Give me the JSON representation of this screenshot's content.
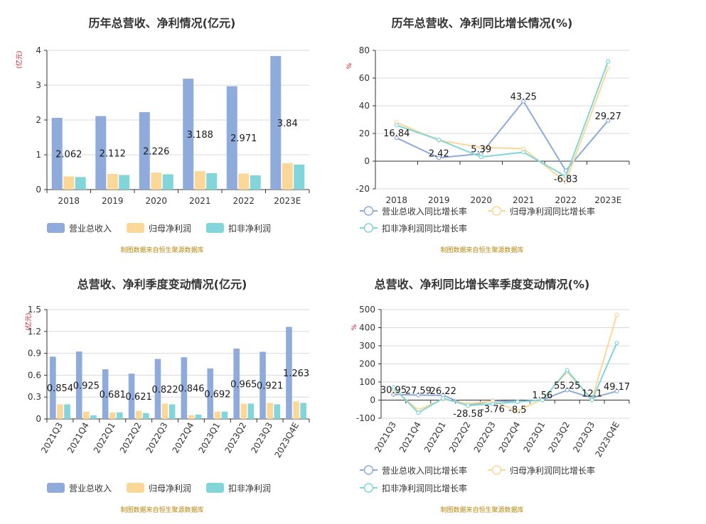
{
  "colors": {
    "revenue": "#8eabdb",
    "parent_profit": "#fbd898",
    "deducted_profit": "#82d6d9",
    "line_revenue": "#8eabdb",
    "line_parent": "#fbd898",
    "line_deducted": "#82d6d9",
    "source_text": "#b8860b",
    "unit_text": "#d0021b"
  },
  "source_note": "制图数据来自恒生聚源数据库",
  "chart_data": [
    {
      "id": "annual-values",
      "type": "bar",
      "title": "历年总营收、净利情况(亿元)",
      "ylabel": "(亿元)",
      "ylim": [
        0,
        4
      ],
      "yticks": [
        0,
        1,
        2,
        3,
        4
      ],
      "ytick_labels": [
        "0",
        "1",
        "2",
        "3",
        "4"
      ],
      "grid": true,
      "legend": "bottom",
      "categories": [
        "2018",
        "2019",
        "2020",
        "2021",
        "2022",
        "2023E"
      ],
      "series": [
        {
          "name": "营业总收入",
          "values": [
            2.062,
            2.112,
            2.226,
            3.188,
            2.971,
            3.84
          ],
          "labels": [
            "2.062",
            "2.112",
            "2.226",
            "3.188",
            "2.971",
            "3.84"
          ]
        },
        {
          "name": "归母净利润",
          "values": [
            0.38,
            0.45,
            0.49,
            0.53,
            0.46,
            0.76
          ]
        },
        {
          "name": "扣非净利润",
          "values": [
            0.36,
            0.42,
            0.44,
            0.47,
            0.41,
            0.72
          ]
        }
      ]
    },
    {
      "id": "annual-growth",
      "type": "line",
      "title": "历年总营收、净利同比增长情况(%)",
      "ylabel": "%",
      "ylim": [
        -20,
        80
      ],
      "yticks": [
        -20,
        0,
        20,
        40,
        60,
        80
      ],
      "ytick_labels": [
        "-20",
        "0",
        "20",
        "40",
        "60",
        "80"
      ],
      "grid": true,
      "legend": "bottom",
      "categories": [
        "2018",
        "2019",
        "2020",
        "2021",
        "2022",
        "2023E"
      ],
      "series": [
        {
          "name": "营业总收入同比增长率",
          "values": [
            16.84,
            2.42,
            5.39,
            43.25,
            -6.83,
            29.27
          ],
          "labels": [
            "16.84",
            "2.42",
            "5.39",
            "43.25",
            "-6.83",
            "29.27"
          ]
        },
        {
          "name": "归母净利润同比增长率",
          "values": [
            28.0,
            15.0,
            10.0,
            9.0,
            -15.0,
            67.0
          ]
        },
        {
          "name": "扣非净利润同比增长率",
          "values": [
            26.0,
            15.5,
            3.0,
            6.5,
            -11.0,
            72.0
          ]
        }
      ]
    },
    {
      "id": "quarterly-values",
      "type": "bar",
      "title": "总营收、净利季度变动情况(亿元)",
      "ylabel": "(亿元)",
      "ylim": [
        0,
        1.5
      ],
      "yticks": [
        0,
        0.3,
        0.6,
        0.9,
        1.2,
        1.5
      ],
      "ytick_labels": [
        "0",
        "0.3",
        "0.6",
        "0.9",
        "1.2",
        "1.5"
      ],
      "grid": true,
      "legend": "bottom",
      "categories": [
        "2021Q3",
        "2021Q4",
        "2022Q1",
        "2022Q2",
        "2022Q3",
        "2022Q4",
        "2023Q1",
        "2023Q2",
        "2023Q3",
        "2023Q4E"
      ],
      "series": [
        {
          "name": "营业总收入",
          "values": [
            0.854,
            0.925,
            0.681,
            0.621,
            0.822,
            0.846,
            0.692,
            0.965,
            0.921,
            1.263
          ],
          "labels": [
            "0.854",
            "0.925",
            "0.681",
            "0.621",
            "0.822",
            "0.846",
            "0.692",
            "0.965",
            "0.921",
            "1.263"
          ]
        },
        {
          "name": "归母净利润",
          "values": [
            0.2,
            0.1,
            0.09,
            0.11,
            0.21,
            0.05,
            0.1,
            0.21,
            0.22,
            0.24
          ]
        },
        {
          "name": "扣非净利润",
          "values": [
            0.2,
            0.05,
            0.09,
            0.08,
            0.2,
            0.06,
            0.1,
            0.21,
            0.2,
            0.22
          ]
        }
      ]
    },
    {
      "id": "quarterly-growth",
      "type": "line",
      "title": "总营收、净利同比增长率季度变动情况(%)",
      "ylabel": "%",
      "ylim": [
        -100,
        500
      ],
      "yticks": [
        -100,
        0,
        100,
        200,
        300,
        400,
        500
      ],
      "ytick_labels": [
        "-100",
        "0",
        "100",
        "200",
        "300",
        "400",
        "500"
      ],
      "grid": true,
      "legend": "bottom",
      "categories": [
        "2021Q3",
        "2021Q4",
        "2022Q1",
        "2022Q2",
        "2022Q3",
        "2022Q4",
        "2023Q1",
        "2023Q2",
        "2023Q3",
        "2023Q4E"
      ],
      "series": [
        {
          "name": "营业总收入同比增长率",
          "values": [
            30.95,
            27.59,
            26.22,
            -28.58,
            -3.76,
            -8.5,
            1.56,
            55.25,
            12.1,
            49.17
          ],
          "labels": [
            "30.95",
            "27.59",
            "26.22",
            "-28.58",
            "-3.76",
            "-8.5",
            "1.56",
            "55.25",
            "12.1",
            "49.17"
          ]
        },
        {
          "name": "归母净利润同比增长率",
          "values": [
            60,
            -55,
            5,
            -20,
            -5,
            -60,
            5,
            155,
            5,
            470
          ]
        },
        {
          "name": "扣非净利润同比增长率",
          "values": [
            70,
            -70,
            10,
            -30,
            -20,
            -10,
            0,
            165,
            0,
            315
          ]
        }
      ]
    }
  ]
}
